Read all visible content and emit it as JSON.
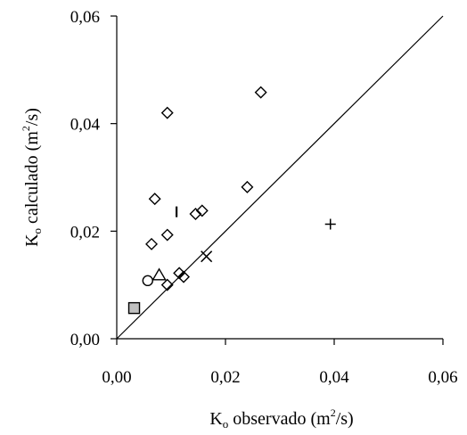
{
  "chart_data": {
    "type": "scatter",
    "title": "",
    "xlabel": "Ko observado (m2/s)",
    "ylabel": "Ko calculado (m2/s)",
    "xlabel_parts": {
      "main": "K",
      "sub": "o",
      "text": " observado (m",
      "sup": "2",
      "tail": "/s)"
    },
    "ylabel_parts": {
      "main": "K",
      "sub": "o",
      "text": " calculado (m",
      "sup": "2",
      "tail": "/s)"
    },
    "xlim": [
      0,
      0.06
    ],
    "ylim": [
      0,
      0.06
    ],
    "xticks": [
      0,
      0.02,
      0.04,
      0.06
    ],
    "yticks": [
      0,
      0.02,
      0.04,
      0.06
    ],
    "xtick_labels": [
      "0,00",
      "0,02",
      "0,04",
      "0,06"
    ],
    "ytick_labels": [
      "0,00",
      "0,02",
      "0,04",
      "0,06"
    ],
    "grid": false,
    "reference_line": {
      "type": "1:1",
      "from": [
        0,
        0
      ],
      "to": [
        0.06,
        0.06
      ]
    },
    "series": [
      {
        "marker": "diamond",
        "points": [
          [
            0.0265,
            0.0458
          ],
          [
            0.0093,
            0.042
          ],
          [
            0.024,
            0.0282
          ],
          [
            0.007,
            0.026
          ],
          [
            0.0145,
            0.0232
          ],
          [
            0.0157,
            0.0238
          ],
          [
            0.0093,
            0.0193
          ],
          [
            0.0064,
            0.0176
          ],
          [
            0.0115,
            0.0122
          ],
          [
            0.0123,
            0.0115
          ],
          [
            0.0093,
            0.01
          ]
        ]
      },
      {
        "marker": "plus",
        "points": [
          [
            0.0393,
            0.0213
          ]
        ]
      },
      {
        "marker": "cross",
        "points": [
          [
            0.0165,
            0.0153
          ]
        ]
      },
      {
        "marker": "vbar",
        "points": [
          [
            0.011,
            0.0236
          ]
        ]
      },
      {
        "marker": "triangle",
        "points": [
          [
            0.0078,
            0.0118
          ]
        ]
      },
      {
        "marker": "circle",
        "points": [
          [
            0.0057,
            0.0108
          ]
        ]
      },
      {
        "marker": "square",
        "points": [
          [
            0.0032,
            0.0057
          ]
        ]
      }
    ],
    "colors": {
      "marker_stroke": "#000000",
      "square_fill": "#c0c0c0"
    }
  }
}
